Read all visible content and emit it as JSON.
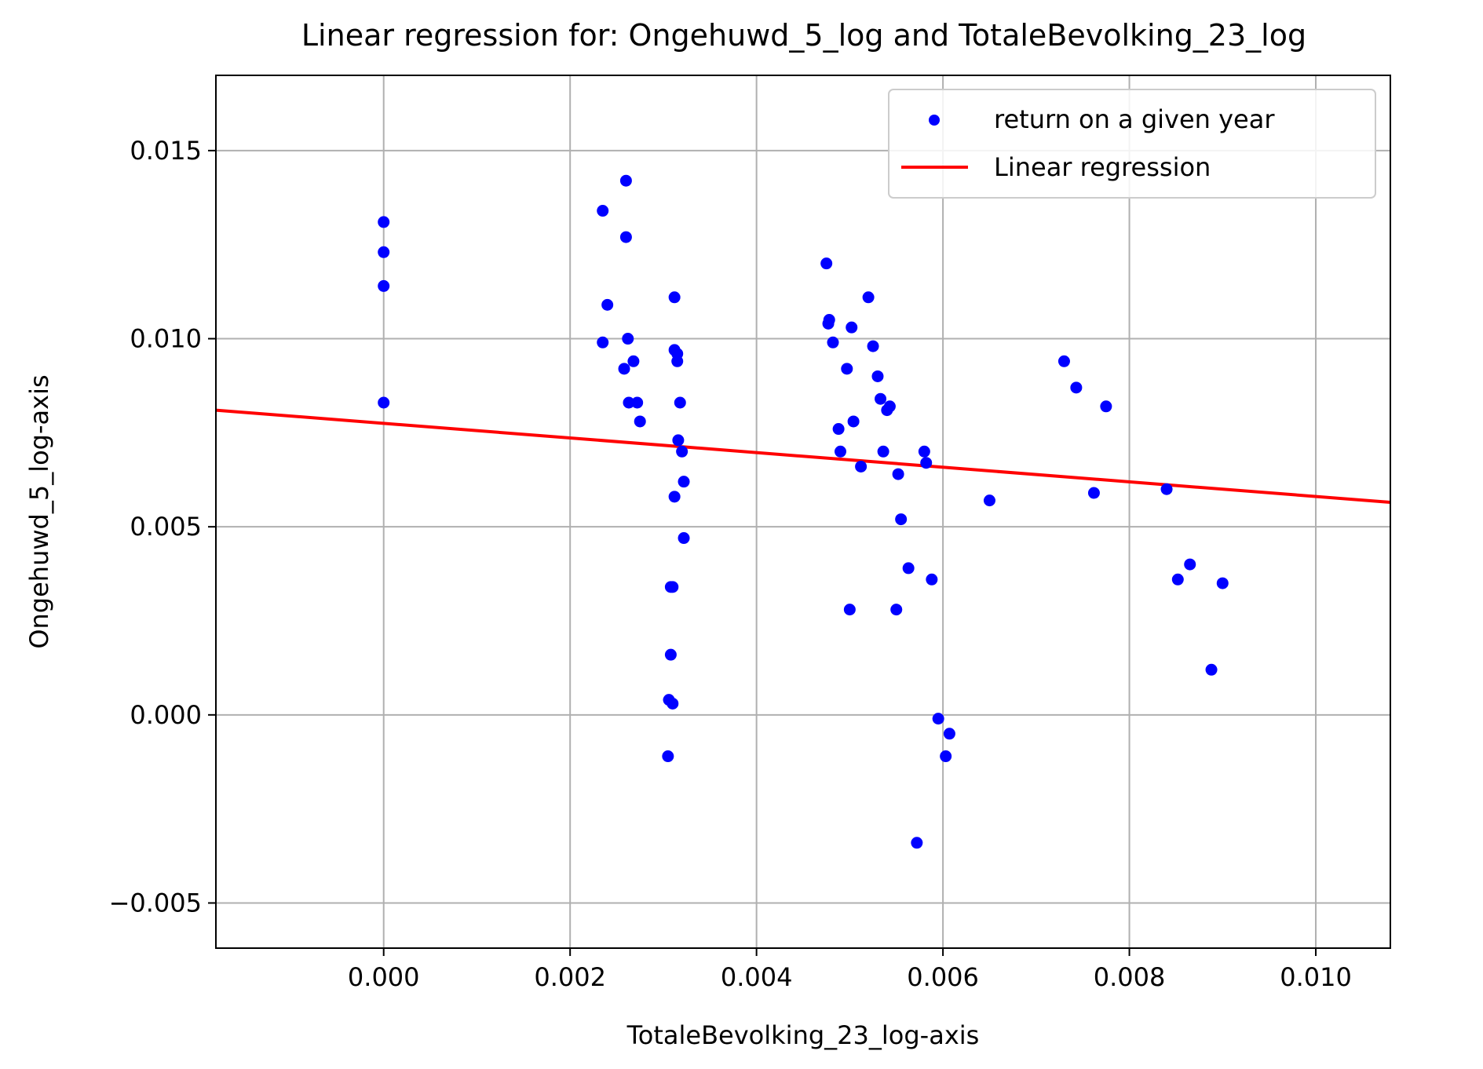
{
  "chart_data": {
    "type": "scatter",
    "title": "Linear regression for: Ongehuwd_5_log and TotaleBevolking_23_log",
    "xlabel": "TotaleBevolking_23_log-axis",
    "ylabel": "Ongehuwd_5_log-axis",
    "xlim": [
      -0.0018,
      0.0108
    ],
    "ylim": [
      -0.0062,
      0.017
    ],
    "x_ticks": [
      0.0,
      0.002,
      0.004,
      0.006,
      0.008,
      0.01
    ],
    "x_tick_labels": [
      "0.000",
      "0.002",
      "0.004",
      "0.006",
      "0.008",
      "0.010"
    ],
    "y_ticks": [
      -0.005,
      0.0,
      0.005,
      0.01,
      0.015
    ],
    "y_tick_labels": [
      "−0.005",
      "0.000",
      "0.005",
      "0.010",
      "0.015"
    ],
    "grid": true,
    "legend_position": "top-right",
    "series": [
      {
        "name": "return on a given year",
        "kind": "scatter",
        "color": "#0000ff",
        "points": [
          [
            0.0,
            0.0131
          ],
          [
            0.0,
            0.0123
          ],
          [
            0.0,
            0.0114
          ],
          [
            0.0,
            0.0083
          ],
          [
            0.00235,
            0.0134
          ],
          [
            0.0026,
            0.0142
          ],
          [
            0.0026,
            0.0127
          ],
          [
            0.0024,
            0.0109
          ],
          [
            0.00235,
            0.0099
          ],
          [
            0.00262,
            0.01
          ],
          [
            0.00258,
            0.0092
          ],
          [
            0.00268,
            0.0094
          ],
          [
            0.00263,
            0.0083
          ],
          [
            0.00272,
            0.0083
          ],
          [
            0.00275,
            0.0078
          ],
          [
            0.00312,
            0.0111
          ],
          [
            0.00312,
            0.0097
          ],
          [
            0.00315,
            0.0096
          ],
          [
            0.00315,
            0.0094
          ],
          [
            0.00318,
            0.0083
          ],
          [
            0.00316,
            0.0073
          ],
          [
            0.0032,
            0.007
          ],
          [
            0.00322,
            0.0062
          ],
          [
            0.00312,
            0.0058
          ],
          [
            0.00322,
            0.0047
          ],
          [
            0.0031,
            0.0034
          ],
          [
            0.00308,
            0.0034
          ],
          [
            0.00308,
            0.0016
          ],
          [
            0.00306,
            0.0004
          ],
          [
            0.0031,
            0.0003
          ],
          [
            0.00305,
            -0.0011
          ],
          [
            0.00475,
            0.012
          ],
          [
            0.00478,
            0.0105
          ],
          [
            0.00477,
            0.0104
          ],
          [
            0.00482,
            0.0099
          ],
          [
            0.00502,
            0.0103
          ],
          [
            0.0052,
            0.0111
          ],
          [
            0.00525,
            0.0098
          ],
          [
            0.00497,
            0.0092
          ],
          [
            0.0053,
            0.009
          ],
          [
            0.00533,
            0.0084
          ],
          [
            0.0054,
            0.0081
          ],
          [
            0.00543,
            0.0082
          ],
          [
            0.00488,
            0.0076
          ],
          [
            0.00504,
            0.0078
          ],
          [
            0.0049,
            0.007
          ],
          [
            0.00536,
            0.007
          ],
          [
            0.0058,
            0.007
          ],
          [
            0.00582,
            0.0067
          ],
          [
            0.00512,
            0.0066
          ],
          [
            0.00552,
            0.0064
          ],
          [
            0.00555,
            0.0052
          ],
          [
            0.00563,
            0.0039
          ],
          [
            0.00588,
            0.0036
          ],
          [
            0.0055,
            0.0028
          ],
          [
            0.005,
            0.0028
          ],
          [
            0.00595,
            -0.0001
          ],
          [
            0.00607,
            -0.0005
          ],
          [
            0.00603,
            -0.0011
          ],
          [
            0.00572,
            -0.0034
          ],
          [
            0.0065,
            0.0057
          ],
          [
            0.0073,
            0.0094
          ],
          [
            0.00743,
            0.0087
          ],
          [
            0.00775,
            0.0082
          ],
          [
            0.00762,
            0.0059
          ],
          [
            0.0084,
            0.006
          ],
          [
            0.00852,
            0.0036
          ],
          [
            0.00865,
            0.004
          ],
          [
            0.009,
            0.0035
          ],
          [
            0.00888,
            0.0012
          ]
        ]
      },
      {
        "name": "Linear regression",
        "kind": "line",
        "color": "#ff0000",
        "points": [
          [
            -0.0018,
            0.0081
          ],
          [
            0.0108,
            0.00565
          ]
        ]
      }
    ]
  }
}
